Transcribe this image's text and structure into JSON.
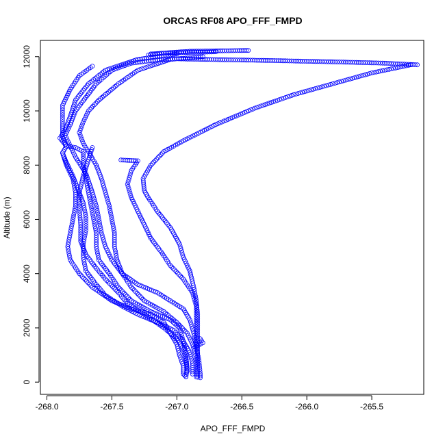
{
  "chart_data": {
    "type": "scatter",
    "title": "ORCAS RF08 APO_FFF_FMPD",
    "xlabel": "APO_FFF_FMPD",
    "ylabel": "Altitude (m)",
    "xlim": [
      -268.05,
      -265.1
    ],
    "ylim": [
      -450,
      12600
    ],
    "xticks": [
      -268.0,
      -267.5,
      -267.0,
      -266.5,
      -266.0,
      -265.5
    ],
    "xtick_labels": [
      "-268.0",
      "-267.5",
      "-267.0",
      "-266.5",
      "-266.0",
      "-265.5"
    ],
    "yticks": [
      0,
      2000,
      4000,
      6000,
      8000,
      10000,
      12000
    ],
    "ytick_labels": [
      "0",
      "2000",
      "4000",
      "6000",
      "8000",
      "10000",
      "12000"
    ],
    "grid": false,
    "legend": "none",
    "marker": "open-circle",
    "color": "#0000ff",
    "series": [
      {
        "values": [
          [
            -266.45,
            12230
          ],
          [
            -266.9,
            12200
          ],
          [
            -267.2,
            12100
          ],
          [
            -267.22,
            12060
          ],
          [
            -267.1,
            12130
          ],
          [
            -266.7,
            12180
          ]
        ]
      },
      {
        "values": [
          [
            -265.15,
            11700
          ],
          [
            -265.4,
            11760
          ],
          [
            -265.8,
            11810
          ],
          [
            -266.3,
            11860
          ],
          [
            -266.8,
            11900
          ],
          [
            -267.0,
            11920
          ],
          [
            -267.15,
            11880
          ],
          [
            -267.35,
            11760
          ],
          [
            -267.5,
            11500
          ],
          [
            -267.62,
            11000
          ],
          [
            -267.7,
            10500
          ],
          [
            -267.78,
            10000
          ],
          [
            -267.82,
            9500
          ],
          [
            -267.86,
            9100
          ],
          [
            -267.82,
            8700
          ],
          [
            -267.78,
            8300
          ],
          [
            -267.7,
            7700
          ],
          [
            -267.65,
            7000
          ],
          [
            -267.62,
            6500
          ],
          [
            -267.6,
            6000
          ],
          [
            -267.58,
            5500
          ],
          [
            -267.55,
            5000
          ],
          [
            -267.5,
            4500
          ],
          [
            -267.42,
            4000
          ],
          [
            -267.3,
            3600
          ],
          [
            -267.15,
            3300
          ],
          [
            -267.05,
            3000
          ],
          [
            -266.95,
            2700
          ],
          [
            -266.9,
            2300
          ],
          [
            -266.87,
            1800
          ],
          [
            -266.85,
            1300
          ],
          [
            -266.83,
            800
          ],
          [
            -266.82,
            300
          ],
          [
            -266.82,
            160
          ]
        ]
      },
      {
        "values": [
          [
            -265.2,
            11700
          ],
          [
            -265.5,
            11400
          ],
          [
            -265.8,
            11000
          ],
          [
            -266.1,
            10600
          ],
          [
            -266.4,
            10100
          ],
          [
            -266.7,
            9500
          ],
          [
            -266.95,
            8900
          ],
          [
            -267.1,
            8500
          ],
          [
            -267.2,
            8000
          ],
          [
            -267.26,
            7500
          ],
          [
            -267.25,
            7050
          ],
          [
            -267.22,
            6800
          ],
          [
            -267.15,
            6300
          ],
          [
            -267.05,
            5700
          ],
          [
            -266.98,
            5100
          ],
          [
            -266.95,
            4600
          ],
          [
            -266.9,
            4100
          ],
          [
            -266.87,
            3500
          ],
          [
            -266.85,
            3000
          ],
          [
            -266.84,
            2500
          ],
          [
            -266.84,
            2000
          ],
          [
            -266.84,
            1500
          ],
          [
            -266.84,
            1000
          ],
          [
            -266.84,
            500
          ],
          [
            -266.84,
            180
          ]
        ]
      },
      {
        "values": [
          [
            -267.0,
            12100
          ],
          [
            -267.3,
            11900
          ],
          [
            -267.55,
            11500
          ],
          [
            -267.68,
            11000
          ],
          [
            -267.78,
            10400
          ],
          [
            -267.82,
            9800
          ],
          [
            -267.86,
            9300
          ],
          [
            -267.9,
            9000
          ],
          [
            -267.85,
            8700
          ],
          [
            -267.78,
            8650
          ],
          [
            -267.72,
            8500
          ],
          [
            -267.72,
            8000
          ],
          [
            -267.7,
            7500
          ],
          [
            -267.68,
            7000
          ],
          [
            -267.66,
            6500
          ],
          [
            -267.64,
            6000
          ],
          [
            -267.62,
            5500
          ],
          [
            -267.62,
            5000
          ],
          [
            -267.6,
            4500
          ],
          [
            -267.52,
            4000
          ],
          [
            -267.45,
            3500
          ],
          [
            -267.35,
            3000
          ],
          [
            -267.2,
            2600
          ],
          [
            -267.05,
            2300
          ],
          [
            -266.98,
            2000
          ],
          [
            -266.95,
            1500
          ],
          [
            -266.93,
            1000
          ],
          [
            -266.92,
            500
          ],
          [
            -266.93,
            200
          ]
        ]
      },
      {
        "values": [
          [
            -267.65,
            11650
          ],
          [
            -267.75,
            11300
          ],
          [
            -267.82,
            10800
          ],
          [
            -267.88,
            10200
          ],
          [
            -267.88,
            9600
          ],
          [
            -267.88,
            9050
          ],
          [
            -267.85,
            8700
          ],
          [
            -267.88,
            8450
          ],
          [
            -267.85,
            8000
          ],
          [
            -267.8,
            7500
          ],
          [
            -267.78,
            7000
          ],
          [
            -267.78,
            6500
          ],
          [
            -267.8,
            6000
          ],
          [
            -267.82,
            5500
          ],
          [
            -267.84,
            5000
          ],
          [
            -267.82,
            4500
          ],
          [
            -267.75,
            4000
          ],
          [
            -267.65,
            3500
          ],
          [
            -267.5,
            3000
          ],
          [
            -267.35,
            2700
          ],
          [
            -267.2,
            2500
          ],
          [
            -267.1,
            2200
          ],
          [
            -267.05,
            1800
          ],
          [
            -267.0,
            1400
          ],
          [
            -266.98,
            1000
          ],
          [
            -266.95,
            600
          ],
          [
            -266.95,
            300
          ],
          [
            -266.93,
            200
          ]
        ]
      },
      {
        "values": [
          [
            -266.8,
            12000
          ],
          [
            -267.05,
            11900
          ],
          [
            -267.3,
            11500
          ],
          [
            -267.45,
            11000
          ],
          [
            -267.6,
            10400
          ],
          [
            -267.68,
            10000
          ],
          [
            -267.72,
            9600
          ],
          [
            -267.75,
            9200
          ],
          [
            -267.72,
            8800
          ],
          [
            -267.68,
            8500
          ],
          [
            -267.62,
            8000
          ],
          [
            -267.58,
            7500
          ],
          [
            -267.55,
            7000
          ],
          [
            -267.52,
            6500
          ],
          [
            -267.5,
            6000
          ],
          [
            -267.48,
            5500
          ],
          [
            -267.48,
            5000
          ],
          [
            -267.46,
            4500
          ],
          [
            -267.42,
            4000
          ],
          [
            -267.35,
            3500
          ],
          [
            -267.25,
            3000
          ],
          [
            -267.1,
            2600
          ],
          [
            -267.0,
            2200
          ],
          [
            -266.92,
            1800
          ],
          [
            -266.88,
            1400
          ],
          [
            -266.85,
            900
          ],
          [
            -266.85,
            400
          ],
          [
            -266.85,
            190
          ]
        ]
      },
      {
        "values": [
          [
            -267.43,
            8190
          ],
          [
            -267.3,
            8160
          ],
          [
            -267.35,
            7800
          ],
          [
            -267.38,
            7300
          ],
          [
            -267.35,
            6800
          ],
          [
            -267.3,
            6300
          ],
          [
            -267.25,
            5800
          ],
          [
            -267.2,
            5300
          ],
          [
            -267.12,
            4800
          ],
          [
            -267.05,
            4300
          ],
          [
            -266.95,
            3800
          ],
          [
            -266.88,
            3300
          ],
          [
            -266.85,
            2800
          ],
          [
            -266.85,
            2300
          ],
          [
            -266.85,
            1800
          ],
          [
            -266.85,
            1400
          ]
        ]
      },
      {
        "values": [
          [
            -267.65,
            8650
          ],
          [
            -267.68,
            8200
          ],
          [
            -267.72,
            7600
          ],
          [
            -267.75,
            7000
          ],
          [
            -267.75,
            6400
          ],
          [
            -267.74,
            5800
          ],
          [
            -267.74,
            5200
          ],
          [
            -267.7,
            4700
          ],
          [
            -267.62,
            4200
          ],
          [
            -267.55,
            3800
          ],
          [
            -267.45,
            3300
          ],
          [
            -267.38,
            2900
          ],
          [
            -267.25,
            2500
          ],
          [
            -267.1,
            2000
          ],
          [
            -267.0,
            1600
          ],
          [
            -266.95,
            1200
          ],
          [
            -266.93,
            800
          ],
          [
            -266.92,
            400
          ]
        ]
      },
      {
        "values": [
          [
            -267.88,
            8450
          ],
          [
            -267.85,
            8100
          ],
          [
            -267.8,
            7600
          ],
          [
            -267.76,
            7100
          ],
          [
            -267.72,
            6600
          ],
          [
            -267.7,
            6100
          ],
          [
            -267.7,
            5600
          ],
          [
            -267.72,
            5100
          ],
          [
            -267.72,
            4600
          ],
          [
            -267.7,
            4100
          ],
          [
            -267.62,
            3600
          ],
          [
            -267.55,
            3200
          ],
          [
            -267.42,
            2800
          ],
          [
            -267.3,
            2500
          ],
          [
            -267.15,
            2200
          ],
          [
            -267.02,
            1900
          ],
          [
            -266.95,
            1500
          ],
          [
            -266.9,
            1100
          ],
          [
            -266.88,
            700
          ],
          [
            -266.88,
            300
          ]
        ]
      },
      {
        "values": [
          [
            -266.82,
            1600
          ],
          [
            -266.8,
            1450
          ],
          [
            -266.86,
            1300
          ]
        ]
      }
    ]
  }
}
